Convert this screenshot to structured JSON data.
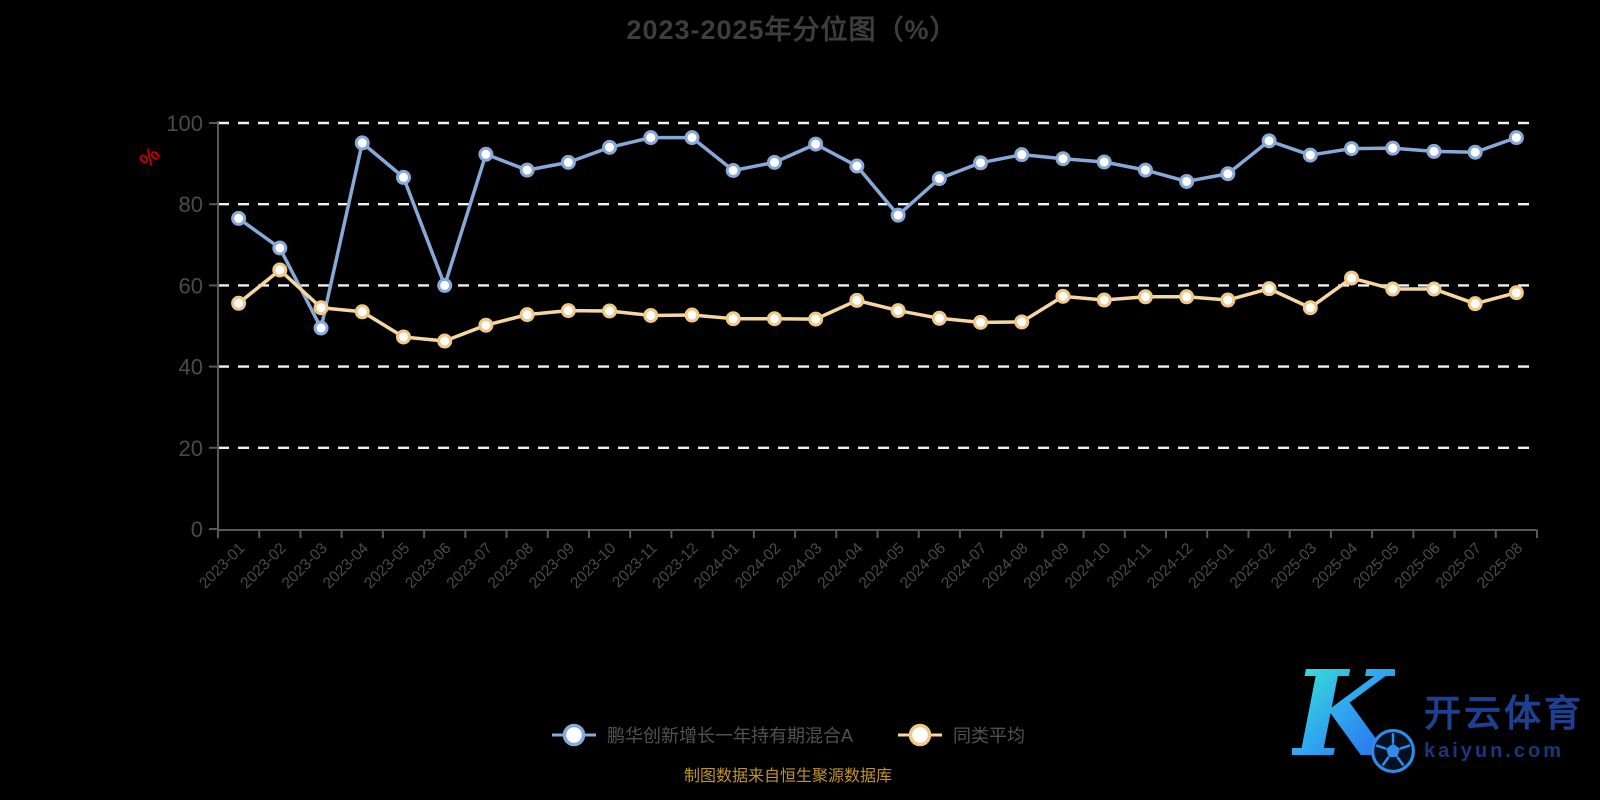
{
  "title": "2023-2025年分位图（%）",
  "y_axis_label": "%",
  "footer_note": "制图数据来自恒生聚源数据库",
  "watermark": {
    "logo_letter": "K",
    "brand_cn": "开云体育",
    "brand_url": "kaiyun.com"
  },
  "colors": {
    "background": "#000000",
    "title": "#3d3d3d",
    "axis_line": "#585858",
    "tick_label": "#4a4a4a",
    "gridline": "#f2f2f2",
    "y_unit_label": "#c00000",
    "legend_text": "#515151",
    "footer_text": "#c0951f",
    "series_fund": "#88a9d8",
    "series_avg_line": "#f5d7a0",
    "series_avg_ring": "#f0c884",
    "marker_fill": "#ffffff",
    "watermark_blue": "#1d4190"
  },
  "chart_data": {
    "type": "line",
    "title": "2023-2025年分位图（%）",
    "xlabel": "",
    "ylabel": "%",
    "ylim": [
      0,
      100
    ],
    "yticks": [
      0,
      20,
      40,
      60,
      80,
      100
    ],
    "grid": "horizontal-dashed-white",
    "legend_position": "bottom-center",
    "x_label_rotation": 45,
    "categories": [
      "2023-01",
      "2023-02",
      "2023-03",
      "2023-04",
      "2023-05",
      "2023-06",
      "2023-07",
      "2023-08",
      "2023-09",
      "2023-10",
      "2023-11",
      "2023-12",
      "2024-01",
      "2024-02",
      "2024-03",
      "2024-04",
      "2024-05",
      "2024-06",
      "2024-07",
      "2024-08",
      "2024-09",
      "2024-10",
      "2024-11",
      "2024-12",
      "2025-01",
      "2025-02",
      "2025-03",
      "2025-04",
      "2025-05",
      "2025-06",
      "2025-07",
      "2025-08"
    ],
    "series": [
      {
        "name": "鹏华创新增长一年持有期混合A",
        "color": "#88a9d8",
        "ring_color": "#88a9d8",
        "values": [
          76.5,
          69.2,
          49.5,
          95.1,
          86.6,
          60.0,
          92.3,
          88.4,
          90.3,
          94.0,
          96.4,
          96.4,
          88.3,
          90.3,
          94.8,
          89.4,
          77.3,
          86.3,
          90.2,
          92.2,
          91.2,
          90.4,
          88.4,
          85.6,
          87.5,
          95.6,
          92.1,
          93.7,
          93.8,
          93.0,
          92.8,
          96.4
        ]
      },
      {
        "name": "同类平均",
        "color": "#f5d7a0",
        "ring_color": "#f0c884",
        "values": [
          55.6,
          63.8,
          54.5,
          53.5,
          47.3,
          46.3,
          50.2,
          52.8,
          53.8,
          53.7,
          52.6,
          52.7,
          51.8,
          51.8,
          51.7,
          56.3,
          53.8,
          51.9,
          50.9,
          51.0,
          57.3,
          56.4,
          57.2,
          57.2,
          56.4,
          59.2,
          54.5,
          61.8,
          59.1,
          59.1,
          55.5,
          58.2
        ]
      }
    ]
  }
}
